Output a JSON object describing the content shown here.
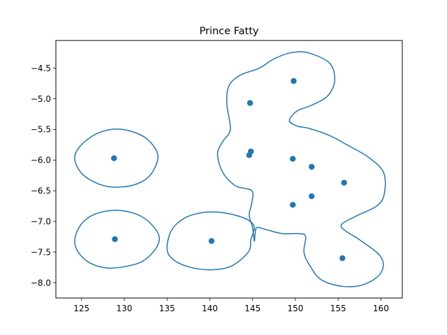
{
  "chart_data": {
    "type": "scatter",
    "title": "Prince Fatty",
    "xlabel": "",
    "ylabel": "",
    "xlim": [
      122,
      162.5
    ],
    "ylim": [
      -8.25,
      -4.05
    ],
    "xticks": [
      125,
      130,
      135,
      140,
      145,
      150,
      155,
      160
    ],
    "yticks": [
      -4.5,
      -5.0,
      -5.5,
      -6.0,
      -6.5,
      -7.0,
      -7.5,
      -8.0
    ],
    "xtick_labels": [
      "125",
      "130",
      "135",
      "140",
      "145",
      "150",
      "155",
      "160"
    ],
    "ytick_labels": [
      "−4.5",
      "−5.0",
      "−5.5",
      "−6.0",
      "−6.5",
      "−7.0",
      "−7.5",
      "−8.0"
    ],
    "grid": false,
    "color": "#1f77b4",
    "points": [
      {
        "x": 128.8,
        "y": -5.97
      },
      {
        "x": 128.9,
        "y": -7.29
      },
      {
        "x": 140.2,
        "y": -7.32
      },
      {
        "x": 144.7,
        "y": -5.07
      },
      {
        "x": 144.8,
        "y": -5.86
      },
      {
        "x": 144.6,
        "y": -5.92
      },
      {
        "x": 149.8,
        "y": -4.71
      },
      {
        "x": 149.7,
        "y": -5.98
      },
      {
        "x": 151.9,
        "y": -6.11
      },
      {
        "x": 155.7,
        "y": -6.37
      },
      {
        "x": 151.9,
        "y": -6.59
      },
      {
        "x": 149.7,
        "y": -6.73
      },
      {
        "x": 155.5,
        "y": -7.6
      }
    ],
    "contours": [
      {
        "name": "",
        "points": [
          [
            124.2,
            -5.97
          ],
          [
            124.8,
            -5.78
          ],
          [
            126.5,
            -5.59
          ],
          [
            128.5,
            -5.5
          ],
          [
            130.5,
            -5.52
          ],
          [
            132.5,
            -5.64
          ],
          [
            133.8,
            -5.86
          ],
          [
            133.8,
            -6.05
          ],
          [
            132.8,
            -6.28
          ],
          [
            131.0,
            -6.41
          ],
          [
            128.5,
            -6.44
          ],
          [
            126.5,
            -6.36
          ],
          [
            124.9,
            -6.2
          ],
          [
            124.2,
            -5.97
          ]
        ]
      },
      {
        "name": "",
        "points": [
          [
            124.2,
            -7.33
          ],
          [
            124.7,
            -7.1
          ],
          [
            126.0,
            -6.92
          ],
          [
            128.0,
            -6.83
          ],
          [
            130.0,
            -6.83
          ],
          [
            132.0,
            -6.92
          ],
          [
            133.5,
            -7.1
          ],
          [
            134.1,
            -7.28
          ],
          [
            133.5,
            -7.48
          ],
          [
            132.0,
            -7.66
          ],
          [
            130.0,
            -7.74
          ],
          [
            128.0,
            -7.76
          ],
          [
            126.0,
            -7.68
          ],
          [
            124.7,
            -7.52
          ],
          [
            124.2,
            -7.33
          ]
        ]
      },
      {
        "name": "",
        "points": [
          [
            135.0,
            -7.45
          ],
          [
            135.5,
            -7.15
          ],
          [
            137.0,
            -6.95
          ],
          [
            139.0,
            -6.86
          ],
          [
            141.0,
            -6.85
          ],
          [
            143.0,
            -6.9
          ],
          [
            144.5,
            -6.98
          ],
          [
            145.2,
            -7.1
          ],
          [
            144.8,
            -7.3
          ],
          [
            144.5,
            -7.5
          ],
          [
            142.5,
            -7.73
          ],
          [
            140.0,
            -7.79
          ],
          [
            137.5,
            -7.74
          ],
          [
            135.7,
            -7.62
          ],
          [
            135.0,
            -7.45
          ]
        ]
      },
      {
        "name": "",
        "points": [
          [
            144.6,
            -6.9
          ],
          [
            144.9,
            -6.7
          ],
          [
            144.9,
            -6.5
          ],
          [
            143.0,
            -6.42
          ],
          [
            141.5,
            -6.2
          ],
          [
            140.9,
            -5.9
          ],
          [
            141.5,
            -5.7
          ],
          [
            142.4,
            -5.5
          ],
          [
            142.0,
            -5.1
          ],
          [
            142.2,
            -4.8
          ],
          [
            143.5,
            -4.62
          ],
          [
            145.8,
            -4.5
          ],
          [
            147.5,
            -4.35
          ],
          [
            149.5,
            -4.25
          ],
          [
            151.5,
            -4.25
          ],
          [
            154.0,
            -4.42
          ],
          [
            154.6,
            -4.7
          ],
          [
            153.8,
            -4.95
          ],
          [
            152.0,
            -5.1
          ],
          [
            150.2,
            -5.2
          ],
          [
            149.3,
            -5.36
          ],
          [
            150.3,
            -5.45
          ],
          [
            151.5,
            -5.48
          ],
          [
            154.0,
            -5.6
          ],
          [
            156.0,
            -5.75
          ],
          [
            158.5,
            -5.95
          ],
          [
            160.3,
            -6.2
          ],
          [
            160.4,
            -6.55
          ],
          [
            159.5,
            -6.75
          ],
          [
            157.0,
            -6.92
          ],
          [
            155.4,
            -7.05
          ],
          [
            155.8,
            -7.15
          ],
          [
            157.5,
            -7.3
          ],
          [
            160.0,
            -7.58
          ],
          [
            160.0,
            -7.84
          ],
          [
            158.0,
            -8.03
          ],
          [
            155.5,
            -8.06
          ],
          [
            153.0,
            -7.95
          ],
          [
            151.6,
            -7.7
          ],
          [
            151.0,
            -7.5
          ],
          [
            151.2,
            -7.25
          ],
          [
            150.5,
            -7.2
          ],
          [
            148.5,
            -7.2
          ],
          [
            146.5,
            -7.13
          ],
          [
            145.5,
            -7.1
          ],
          [
            145.3,
            -7.2
          ],
          [
            145.2,
            -7.32
          ],
          [
            145.0,
            -7.1
          ],
          [
            144.6,
            -6.9
          ]
        ]
      }
    ]
  }
}
